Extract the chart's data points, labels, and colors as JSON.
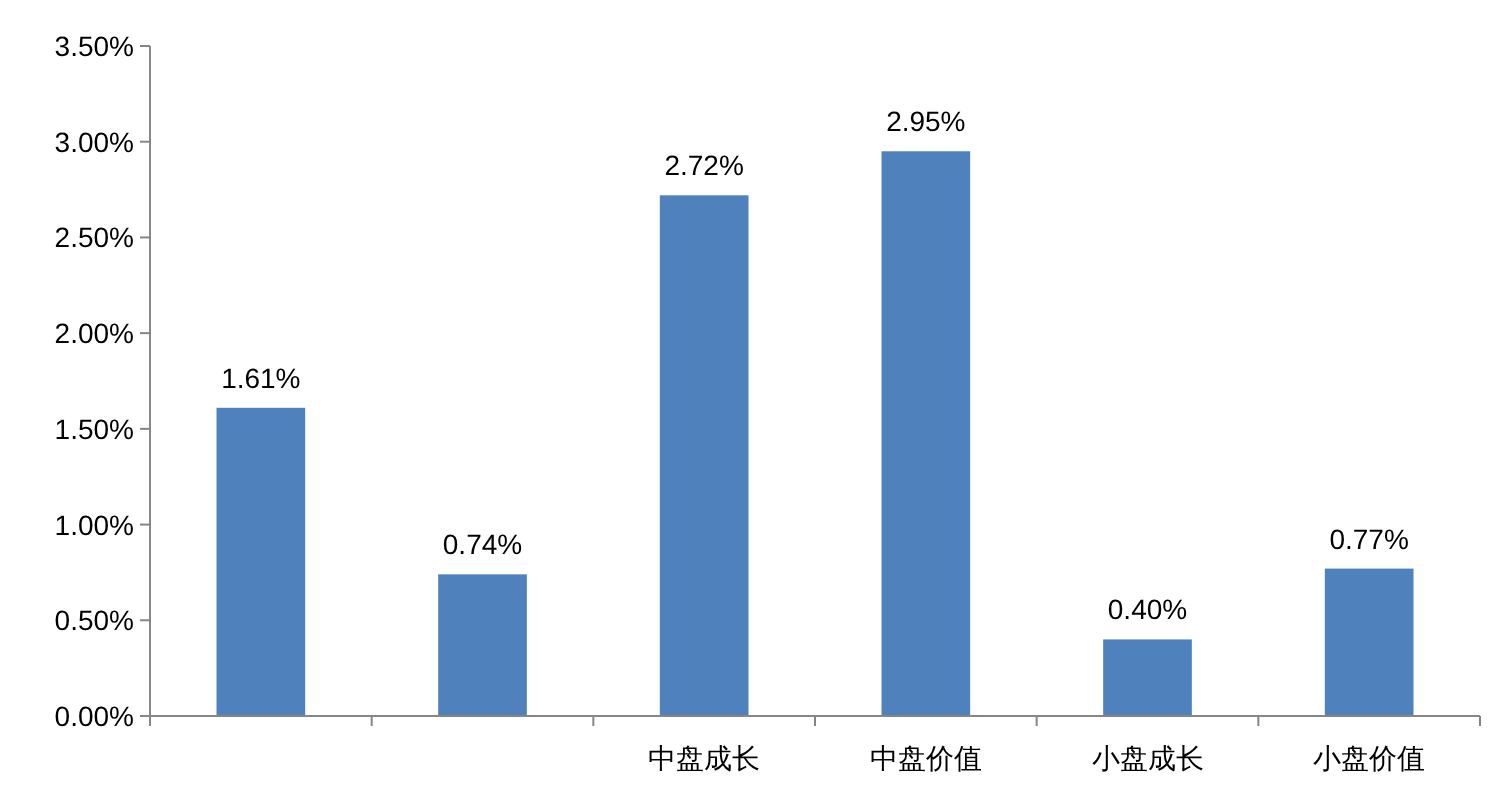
{
  "chart_data": {
    "type": "bar",
    "categories": [
      null,
      null,
      "中盘成长",
      "中盘价值",
      "小盘成长",
      "小盘价值"
    ],
    "values": [
      1.61,
      0.74,
      2.72,
      2.95,
      0.4,
      0.77
    ],
    "color": "#4f81bd",
    "value_labels": [
      "1.61%",
      "0.74%",
      "2.72%",
      "2.95%",
      "0.40%",
      "0.77%"
    ],
    "ylim": [
      0,
      3.5
    ],
    "yticks": [
      {
        "value": 0,
        "label": "0.00%"
      },
      {
        "value": 0.5,
        "label": "0.50%"
      },
      {
        "value": 1,
        "label": "1.00%"
      },
      {
        "value": 1.5,
        "label": "1.50%"
      },
      {
        "value": 2,
        "label": "2.00%"
      },
      {
        "value": 2.5,
        "label": "2.50%"
      },
      {
        "value": 3,
        "label": "3.00%"
      },
      {
        "value": 3.5,
        "label": "3.50%"
      }
    ],
    "grid": false
  }
}
